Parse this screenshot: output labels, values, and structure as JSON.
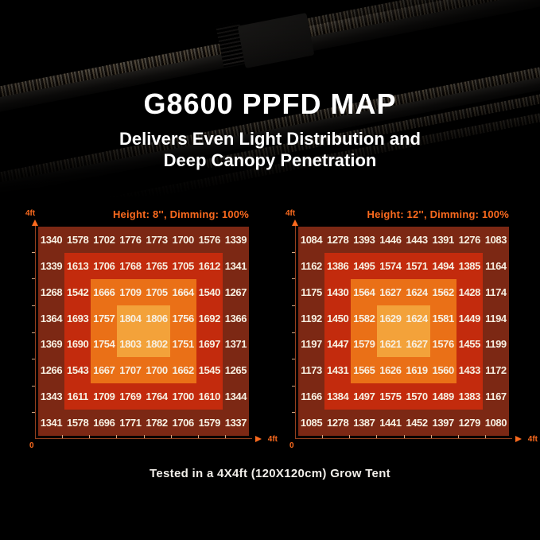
{
  "hero": {
    "title": "G8600 PPFD MAP",
    "subtitle_line1": "Delivers Even Light Distribution and",
    "subtitle_line2": "Deep Canopy Penetration"
  },
  "caption": "Tested in a 4X4ft (120X120cm) Grow Tent",
  "colors": {
    "background": "#000000",
    "accent_orange": "#fb6a1e",
    "zone_outer": "#7c2814",
    "zone_ring2": "#c32b0d",
    "zone_ring3": "#ea7017",
    "zone_center": "#f3a23a",
    "cell_text": "#f7f0e2",
    "axis_line": "#93401e",
    "axis_tick": "#d6a680",
    "headline_text": "#ffffff"
  },
  "chart_data": [
    {
      "type": "heatmap",
      "title": "Height: 8'', Dimming: 100%",
      "x_axis": {
        "origin_label": "0",
        "end_label": "4ft",
        "range_ft": [
          0,
          4
        ],
        "ticks_every_ft": 0.5
      },
      "y_axis": {
        "end_label": "4ft",
        "range_ft": [
          0,
          4
        ],
        "ticks_every_ft": 0.5
      },
      "grid": "8x8 PPFD values (umol/m2/s), nested color zones from outer to center",
      "values": [
        [
          1340,
          1578,
          1702,
          1776,
          1773,
          1700,
          1576,
          1339
        ],
        [
          1339,
          1613,
          1706,
          1768,
          1765,
          1705,
          1612,
          1341
        ],
        [
          1268,
          1542,
          1666,
          1709,
          1705,
          1664,
          1540,
          1267
        ],
        [
          1364,
          1693,
          1757,
          1804,
          1806,
          1756,
          1692,
          1366
        ],
        [
          1369,
          1690,
          1754,
          1803,
          1802,
          1751,
          1697,
          1371
        ],
        [
          1266,
          1543,
          1667,
          1707,
          1700,
          1662,
          1545,
          1265
        ],
        [
          1343,
          1611,
          1709,
          1769,
          1764,
          1700,
          1610,
          1344
        ],
        [
          1341,
          1578,
          1696,
          1771,
          1782,
          1706,
          1579,
          1337
        ]
      ]
    },
    {
      "type": "heatmap",
      "title": "Height: 12'', Dimming: 100%",
      "x_axis": {
        "origin_label": "0",
        "end_label": "4ft",
        "range_ft": [
          0,
          4
        ],
        "ticks_every_ft": 0.5
      },
      "y_axis": {
        "end_label": "4ft",
        "range_ft": [
          0,
          4
        ],
        "ticks_every_ft": 0.5
      },
      "grid": "8x8 PPFD values (umol/m2/s), nested color zones from outer to center",
      "values": [
        [
          1084,
          1278,
          1393,
          1446,
          1443,
          1391,
          1276,
          1083
        ],
        [
          1162,
          1386,
          1495,
          1574,
          1571,
          1494,
          1385,
          1164
        ],
        [
          1175,
          1430,
          1564,
          1627,
          1624,
          1562,
          1428,
          1174
        ],
        [
          1192,
          1450,
          1582,
          1629,
          1624,
          1581,
          1449,
          1194
        ],
        [
          1197,
          1447,
          1579,
          1621,
          1627,
          1576,
          1455,
          1199
        ],
        [
          1173,
          1431,
          1565,
          1626,
          1619,
          1560,
          1433,
          1172
        ],
        [
          1166,
          1384,
          1497,
          1575,
          1570,
          1489,
          1383,
          1167
        ],
        [
          1085,
          1278,
          1387,
          1441,
          1452,
          1397,
          1279,
          1080
        ]
      ]
    }
  ]
}
